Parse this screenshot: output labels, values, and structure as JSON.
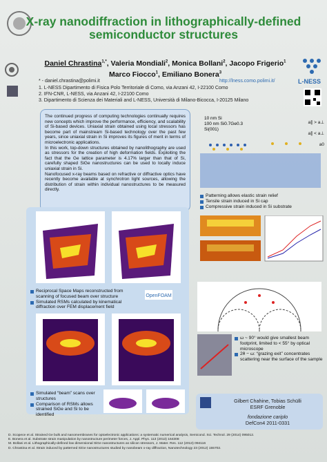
{
  "header": {
    "title": "X-ray nanodiffraction in lithographically-defined semiconductor structures",
    "authors": [
      {
        "name": "Daniel Chrastina",
        "sup": "1,*"
      },
      {
        "name": "Valeria Mondiali",
        "sup": "2"
      },
      {
        "name": "Monica Bollani",
        "sup": "2"
      },
      {
        "name": "Jacopo Frigerio",
        "sup": "1"
      },
      {
        "name": "Marco Fiocco",
        "sup": "1"
      },
      {
        "name": "Emiliano Bonera",
        "sup": "3"
      }
    ],
    "email": "* - daniel.chrastina@polimi.it",
    "website": "http://lness.como.polimi.it/",
    "affiliations": [
      "1. L-NESS Dipartimento di Fisica Polo Territoriale di Como, via Anzani 42, I-22100 Como",
      "2. IFN-CNR, L-NESS, via Anzani 42, I-22100 Como",
      "3. Dipartimento di Scienza dei Materiali and L-NESS, Università di Milano-Bicocca, I-20125 Milano"
    ],
    "logo": "L-NESS"
  },
  "abstract": [
    "The continued progress of computing technologies continually requires new concepts which improve the performance, efficiency, and scalability of Si-based devices. Uniaxial strain obtained using local stressors has become part of mainstream Si-based technology over the past few years, since uniaxial strain in Si improves its figures of merit in terms of microelectronic applications.",
    "In this work, top-down structures obtained by nanolithography are used as stressors for the creation of high deformation fields. Exploiting the fact that the Ge lattice parameter is 4.17% larger than that of Si, carefully shaped SiGe nanostructures can be used to locally induce uniaxial strain in Si.",
    "Nanofocused x-ray beams based on refractive or diffractive optics have recently become available at synchrotron light sources, allowing the distribution of strain within individual nanostructures to be measured directly."
  ],
  "structure": {
    "layers": [
      "10 nm Si",
      "100 nm Si0.7Ge0.3",
      "Si(001)"
    ],
    "lattice_labels": [
      "a∥ > a⊥",
      "a∥ < a⊥",
      "a0"
    ],
    "bullets": [
      "Patterning allows elastic strain relief",
      "Tensile strain induced in Si cap",
      "Compressive strain induced in Si substrate"
    ]
  },
  "rsm": {
    "bullets": [
      "Reciprocal Space Maps reconstructed from scanning of focused beam over structure",
      "Simulated RSMs calculated by kinematical diffraction over FEM displacement field"
    ],
    "scan_bullets": [
      "Simulated “beam” scans over structures",
      "Comparison of RSMs allows strained SiGe and Si to be identified"
    ]
  },
  "geometry": {
    "bullets": [
      "ω ~ 90° would give smallest beam footprint, limited to < 55° by optical microscope",
      "2θ − ω: “grazing exit” concentrates scattering near the surface of the sample"
    ]
  },
  "acknowledgements": [
    "Gilbert Chahine, Tobias Schülli",
    "ESRF Grenoble",
    "fondazione cariplo",
    "DefCon4 2011-0331"
  ],
  "references": [
    "D. Scopece et al. Strained Ge bulk and nanomembranes for optoelectronic applications: a systematic numerical analysis, Semicond. Sci. Technol. 29 (2014) 095012.",
    "E. Bonera et al. Substrate strain manipulation by nanostructure perimeter forces, J. Appl. Phys. 113 (2013) 164308",
    "M. Bollani et al. Lithographically-defined low dimensional SiGe nanostructures as silicon stressors, J. Mater. Res. 112 (2013) 094116",
    "D. Chrastina et al. Strain induced by patterned SiGe nanostructures studied by nanobeam x-ray diffraction, Nanotechnology 23 (2012) 155702."
  ]
}
